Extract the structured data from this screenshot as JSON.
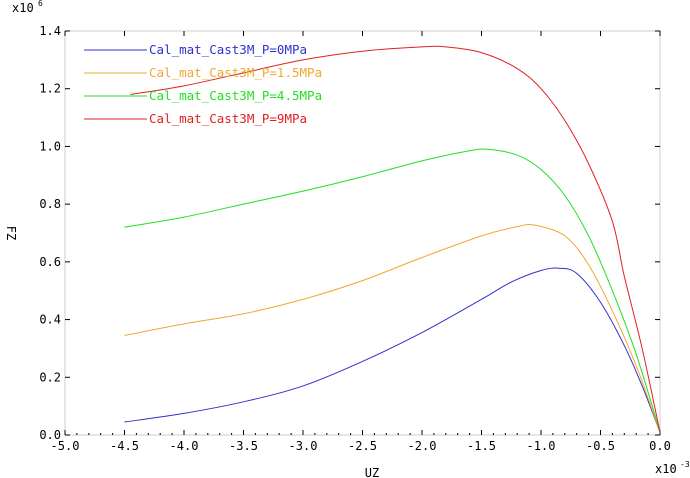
{
  "chart_data": {
    "type": "line",
    "xlabel": "UZ",
    "ylabel": "FZ",
    "x_multiplier": "x10",
    "x_exponent": "-3",
    "y_multiplier": "x10",
    "y_exponent": "6",
    "xlim": [
      -5.0,
      0.0
    ],
    "ylim": [
      0.0,
      1.4
    ],
    "x_ticks": [
      -5.0,
      -4.5,
      -4.0,
      -3.5,
      -3.0,
      -2.5,
      -2.0,
      -1.5,
      -1.0,
      -0.5,
      0.0
    ],
    "x_tick_labels": [
      "-5.0",
      "-4.5",
      "-4.0",
      "-3.5",
      "-3.0",
      "-2.5",
      "-2.0",
      "-1.5",
      "-1.0",
      "-0.5",
      "0.0"
    ],
    "y_ticks": [
      0.0,
      0.2,
      0.4,
      0.6,
      0.8,
      1.0,
      1.2,
      1.4
    ],
    "y_tick_labels": [
      "0.0",
      "0.2",
      "0.4",
      "0.6",
      "0.8",
      "1.0",
      "1.2",
      "1.4"
    ],
    "grid": false,
    "legend_position": "top-left",
    "series": [
      {
        "name": "Cal_mat_Cast3M_P=0MPa",
        "color": "#3030d0",
        "points": [
          [
            -4.5,
            0.045
          ],
          [
            -4.0,
            0.075
          ],
          [
            -3.5,
            0.115
          ],
          [
            -3.0,
            0.17
          ],
          [
            -2.5,
            0.255
          ],
          [
            -2.0,
            0.355
          ],
          [
            -1.5,
            0.47
          ],
          [
            -1.25,
            0.53
          ],
          [
            -1.0,
            0.57
          ],
          [
            -0.85,
            0.578
          ],
          [
            -0.7,
            0.56
          ],
          [
            -0.5,
            0.46
          ],
          [
            -0.3,
            0.31
          ],
          [
            -0.15,
            0.17
          ],
          [
            0.0,
            0.01
          ]
        ]
      },
      {
        "name": "Cal_mat_Cast3M_P=1.5MPa",
        "color": "#f0a830",
        "points": [
          [
            -4.5,
            0.345
          ],
          [
            -4.0,
            0.385
          ],
          [
            -3.5,
            0.42
          ],
          [
            -3.0,
            0.47
          ],
          [
            -2.5,
            0.535
          ],
          [
            -2.0,
            0.615
          ],
          [
            -1.5,
            0.69
          ],
          [
            -1.2,
            0.722
          ],
          [
            -1.05,
            0.727
          ],
          [
            -0.8,
            0.69
          ],
          [
            -0.6,
            0.59
          ],
          [
            -0.4,
            0.43
          ],
          [
            -0.2,
            0.24
          ],
          [
            0.0,
            0.01
          ]
        ]
      },
      {
        "name": "Cal_mat_Cast3M_P=4.5MPa",
        "color": "#22e022",
        "points": [
          [
            -4.5,
            0.72
          ],
          [
            -4.0,
            0.755
          ],
          [
            -3.5,
            0.8
          ],
          [
            -3.0,
            0.845
          ],
          [
            -2.5,
            0.895
          ],
          [
            -2.0,
            0.95
          ],
          [
            -1.6,
            0.985
          ],
          [
            -1.45,
            0.99
          ],
          [
            -1.2,
            0.97
          ],
          [
            -1.0,
            0.92
          ],
          [
            -0.8,
            0.83
          ],
          [
            -0.6,
            0.69
          ],
          [
            -0.4,
            0.5
          ],
          [
            -0.2,
            0.28
          ],
          [
            0.0,
            0.01
          ]
        ]
      },
      {
        "name": "Cal_mat_Cast3M_P=9MPa",
        "color": "#e02020",
        "points": [
          [
            -4.45,
            1.18
          ],
          [
            -4.0,
            1.21
          ],
          [
            -3.5,
            1.255
          ],
          [
            -3.0,
            1.3
          ],
          [
            -2.5,
            1.33
          ],
          [
            -2.0,
            1.345
          ],
          [
            -1.8,
            1.345
          ],
          [
            -1.5,
            1.325
          ],
          [
            -1.2,
            1.27
          ],
          [
            -1.0,
            1.2
          ],
          [
            -0.8,
            1.09
          ],
          [
            -0.6,
            0.94
          ],
          [
            -0.4,
            0.74
          ],
          [
            -0.3,
            0.55
          ],
          [
            -0.15,
            0.3
          ],
          [
            0.0,
            0.01
          ]
        ]
      }
    ]
  }
}
